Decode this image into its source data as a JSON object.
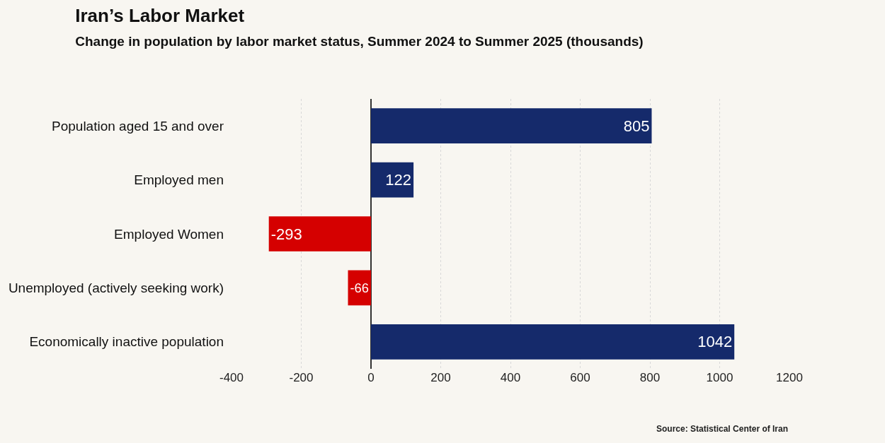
{
  "chart_data": {
    "type": "bar",
    "orientation": "horizontal",
    "title": "Iran’s Labor Market",
    "subtitle": "Change in population by labor market status, Summer 2024 to Summer 2025 (thousands)",
    "categories": [
      "Population aged 15 and over",
      "Employed men",
      "Employed Women",
      "Unemployed (actively seeking work)",
      "Economically inactive population"
    ],
    "values": [
      805,
      122,
      -293,
      -66,
      1042
    ],
    "colors": [
      "#152a6b",
      "#152a6b",
      "#d50000",
      "#d50000",
      "#152a6b"
    ],
    "xlim": [
      -400,
      1200
    ],
    "xticks": [
      -400,
      -200,
      0,
      200,
      400,
      600,
      800,
      1000,
      1200
    ],
    "grid": "x",
    "data_labels": true,
    "annotations": [
      "Source: Statistical Center of Iran"
    ]
  }
}
